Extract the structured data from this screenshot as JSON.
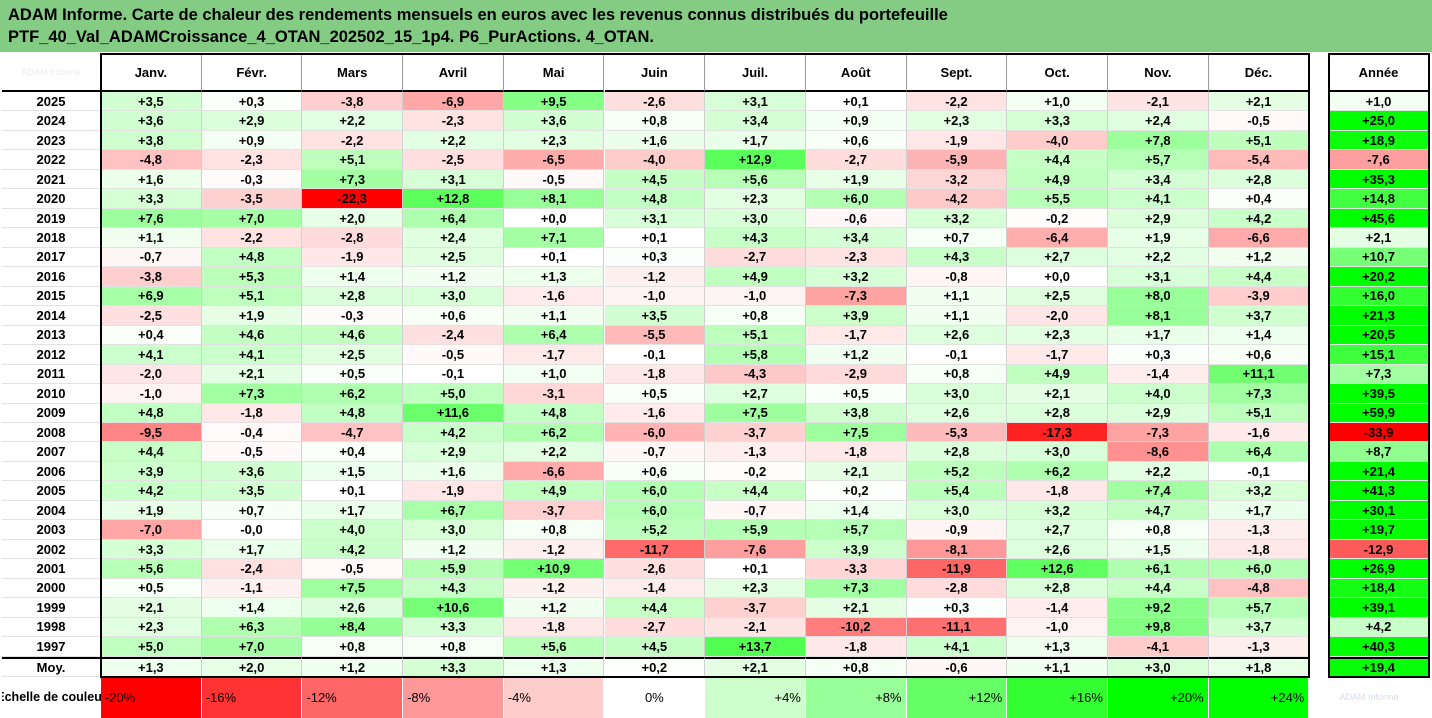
{
  "title": {
    "line1": "ADAM Informe. Carte de chaleur des rendements mensuels en euros avec les revenus connus distribués du portefeuille",
    "line2": "PTF_40_Val_ADAMCroissance_4_OTAN_202502_15_1p4. P6_PurActions. 4_OTAN."
  },
  "corner_label": "ADAM Informe",
  "logo_text": "ADAM Informe",
  "colors": {
    "title_bg": "#84cc84",
    "neg_max": "#ff0000",
    "pos_max": "#00ff00",
    "neutral": "#ffffff"
  },
  "chart_data": {
    "type": "heatmap",
    "months": [
      "Janv.",
      "Févr.",
      "Mars",
      "Avril",
      "Mai",
      "Juin",
      "Juil.",
      "Août",
      "Sept.",
      "Oct.",
      "Nov.",
      "Déc."
    ],
    "annual_header": "Année",
    "rows": [
      {
        "year": "2025",
        "months": [
          "+3,5",
          "+0,3",
          "-3,8",
          "-6,9",
          "+9,5",
          "-2,6",
          "+3,1",
          "+0,1",
          "-2,2",
          "+1,0",
          "-2,1",
          "+2,1"
        ],
        "annual": "+1,0"
      },
      {
        "year": "2024",
        "months": [
          "+3,6",
          "+2,9",
          "+2,2",
          "-2,3",
          "+3,6",
          "+0,8",
          "+3,4",
          "+0,9",
          "+2,3",
          "+3,3",
          "+2,4",
          "-0,5"
        ],
        "annual": "+25,0"
      },
      {
        "year": "2023",
        "months": [
          "+3,8",
          "+0,9",
          "-2,2",
          "+2,2",
          "+2,3",
          "+1,6",
          "+1,7",
          "+0,6",
          "-1,9",
          "-4,0",
          "+7,8",
          "+5,1"
        ],
        "annual": "+18,9"
      },
      {
        "year": "2022",
        "months": [
          "-4,8",
          "-2,3",
          "+5,1",
          "-2,5",
          "-6,5",
          "-4,0",
          "+12,9",
          "-2,7",
          "-5,9",
          "+4,4",
          "+5,7",
          "-5,4"
        ],
        "annual": "-7,6"
      },
      {
        "year": "2021",
        "months": [
          "+1,6",
          "-0,3",
          "+7,3",
          "+3,1",
          "-0,5",
          "+4,5",
          "+5,6",
          "+1,9",
          "-3,2",
          "+4,9",
          "+3,4",
          "+2,8"
        ],
        "annual": "+35,3"
      },
      {
        "year": "2020",
        "months": [
          "+3,3",
          "-3,5",
          "-22,3",
          "+12,8",
          "+8,1",
          "+4,8",
          "+2,3",
          "+6,0",
          "-4,2",
          "+5,5",
          "+4,1",
          "+0,4"
        ],
        "annual": "+14,8"
      },
      {
        "year": "2019",
        "months": [
          "+7,6",
          "+7,0",
          "+2,0",
          "+6,4",
          "+0,0",
          "+3,1",
          "+3,0",
          "-0,6",
          "+3,2",
          "-0,2",
          "+2,9",
          "+4,2"
        ],
        "annual": "+45,6"
      },
      {
        "year": "2018",
        "months": [
          "+1,1",
          "-2,2",
          "-2,8",
          "+2,4",
          "+7,1",
          "+0,1",
          "+4,3",
          "+3,4",
          "+0,7",
          "-6,4",
          "+1,9",
          "-6,6"
        ],
        "annual": "+2,1"
      },
      {
        "year": "2017",
        "months": [
          "-0,7",
          "+4,8",
          "-1,9",
          "+2,5",
          "+0,1",
          "+0,3",
          "-2,7",
          "-2,3",
          "+4,3",
          "+2,7",
          "+2,2",
          "+1,2"
        ],
        "annual": "+10,7"
      },
      {
        "year": "2016",
        "months": [
          "-3,8",
          "+5,3",
          "+1,4",
          "+1,2",
          "+1,3",
          "-1,2",
          "+4,9",
          "+3,2",
          "-0,8",
          "+0,0",
          "+3,1",
          "+4,4"
        ],
        "annual": "+20,2"
      },
      {
        "year": "2015",
        "months": [
          "+6,9",
          "+5,1",
          "+2,8",
          "+3,0",
          "-1,6",
          "-1,0",
          "-1,0",
          "-7,3",
          "+1,1",
          "+2,5",
          "+8,0",
          "-3,9"
        ],
        "annual": "+16,0"
      },
      {
        "year": "2014",
        "months": [
          "-2,5",
          "+1,9",
          "-0,3",
          "+0,6",
          "+1,1",
          "+3,5",
          "+0,8",
          "+3,9",
          "+1,1",
          "-2,0",
          "+8,1",
          "+3,7"
        ],
        "annual": "+21,3"
      },
      {
        "year": "2013",
        "months": [
          "+0,4",
          "+4,6",
          "+4,6",
          "-2,4",
          "+6,4",
          "-5,5",
          "+5,1",
          "-1,7",
          "+2,6",
          "+2,3",
          "+1,7",
          "+1,4"
        ],
        "annual": "+20,5"
      },
      {
        "year": "2012",
        "months": [
          "+4,1",
          "+4,1",
          "+2,5",
          "-0,5",
          "-1,7",
          "-0,1",
          "+5,8",
          "+1,2",
          "-0,1",
          "-1,7",
          "+0,3",
          "+0,6"
        ],
        "annual": "+15,1"
      },
      {
        "year": "2011",
        "months": [
          "-2,0",
          "+2,1",
          "+0,5",
          "-0,1",
          "+1,0",
          "-1,8",
          "-4,3",
          "-2,9",
          "+0,8",
          "+4,9",
          "-1,4",
          "+11,1"
        ],
        "annual": "+7,3"
      },
      {
        "year": "2010",
        "months": [
          "-1,0",
          "+7,3",
          "+6,2",
          "+5,0",
          "-3,1",
          "+0,5",
          "+2,7",
          "+0,5",
          "+3,0",
          "+2,1",
          "+4,0",
          "+7,3"
        ],
        "annual": "+39,5"
      },
      {
        "year": "2009",
        "months": [
          "+4,8",
          "-1,8",
          "+4,8",
          "+11,6",
          "+4,8",
          "-1,6",
          "+7,5",
          "+3,8",
          "+2,6",
          "+2,8",
          "+2,9",
          "+5,1"
        ],
        "annual": "+59,9"
      },
      {
        "year": "2008",
        "months": [
          "-9,5",
          "-0,4",
          "-4,7",
          "+4,2",
          "+6,2",
          "-6,0",
          "-3,7",
          "+7,5",
          "-5,3",
          "-17,3",
          "-7,3",
          "-1,6"
        ],
        "annual": "-33,9"
      },
      {
        "year": "2007",
        "months": [
          "+4,4",
          "-0,5",
          "+0,4",
          "+2,9",
          "+2,2",
          "-0,7",
          "-1,3",
          "-1,8",
          "+2,8",
          "+3,0",
          "-8,6",
          "+6,4"
        ],
        "annual": "+8,7"
      },
      {
        "year": "2006",
        "months": [
          "+3,9",
          "+3,6",
          "+1,5",
          "+1,6",
          "-6,6",
          "+0,6",
          "-0,2",
          "+2,1",
          "+5,2",
          "+6,2",
          "+2,2",
          "-0,1"
        ],
        "annual": "+21,4"
      },
      {
        "year": "2005",
        "months": [
          "+4,2",
          "+3,5",
          "+0,1",
          "-1,9",
          "+4,9",
          "+6,0",
          "+4,4",
          "+0,2",
          "+5,4",
          "-1,8",
          "+7,4",
          "+3,2"
        ],
        "annual": "+41,3"
      },
      {
        "year": "2004",
        "months": [
          "+1,9",
          "+0,7",
          "+1,7",
          "+6,7",
          "-3,7",
          "+6,0",
          "-0,7",
          "+1,4",
          "+3,0",
          "+3,2",
          "+4,7",
          "+1,7"
        ],
        "annual": "+30,1"
      },
      {
        "year": "2003",
        "months": [
          "-7,0",
          "-0,0",
          "+4,0",
          "+3,0",
          "+0,8",
          "+5,2",
          "+5,9",
          "+5,7",
          "-0,9",
          "+2,7",
          "+0,8",
          "-1,3"
        ],
        "annual": "+19,7"
      },
      {
        "year": "2002",
        "months": [
          "+3,3",
          "+1,7",
          "+4,2",
          "+1,2",
          "-1,2",
          "-11,7",
          "-7,6",
          "+3,9",
          "-8,1",
          "+2,6",
          "+1,5",
          "-1,8"
        ],
        "annual": "-12,9"
      },
      {
        "year": "2001",
        "months": [
          "+5,6",
          "-2,4",
          "-0,5",
          "+5,9",
          "+10,9",
          "-2,6",
          "+0,1",
          "-3,3",
          "-11,9",
          "+12,6",
          "+6,1",
          "+6,0"
        ],
        "annual": "+26,9"
      },
      {
        "year": "2000",
        "months": [
          "+0,5",
          "-1,1",
          "+7,5",
          "+4,3",
          "-1,2",
          "-1,4",
          "+2,3",
          "+7,3",
          "-2,8",
          "+2,8",
          "+4,4",
          "-4,8"
        ],
        "annual": "+18,4"
      },
      {
        "year": "1999",
        "months": [
          "+2,1",
          "+1,4",
          "+2,6",
          "+10,6",
          "+1,2",
          "+4,4",
          "-3,7",
          "+2,1",
          "+0,3",
          "-1,4",
          "+9,2",
          "+5,7"
        ],
        "annual": "+39,1"
      },
      {
        "year": "1998",
        "months": [
          "+2,3",
          "+6,3",
          "+8,4",
          "+3,3",
          "-1,8",
          "-2,7",
          "-2,1",
          "-10,2",
          "-11,1",
          "-1,0",
          "+9,8",
          "+3,7"
        ],
        "annual": "+4,2"
      },
      {
        "year": "1997",
        "months": [
          "+5,0",
          "+7,0",
          "+0,8",
          "+0,8",
          "+5,6",
          "+4,5",
          "+13,7",
          "-1,8",
          "+4,1",
          "+1,3",
          "-4,1",
          "-1,3"
        ],
        "annual": "+40,3"
      }
    ],
    "average": {
      "label": "Moy.",
      "months": [
        "+1,3",
        "+2,0",
        "+1,2",
        "+3,3",
        "+1,3",
        "+0,2",
        "+2,1",
        "+0,8",
        "-0,6",
        "+1,1",
        "+3,0",
        "+1,8"
      ],
      "annual": "+19,4"
    },
    "scale": {
      "title": "Echelle de couleur",
      "labels": [
        "-20%",
        "-16%",
        "-12%",
        "-8%",
        "-4%",
        "0%",
        "+4%",
        "+8%",
        "+12%",
        "+16%",
        "+20%",
        "+24%"
      ],
      "values": [
        -20,
        -16,
        -12,
        -8,
        -4,
        0,
        4,
        8,
        12,
        16,
        20,
        24
      ]
    }
  }
}
